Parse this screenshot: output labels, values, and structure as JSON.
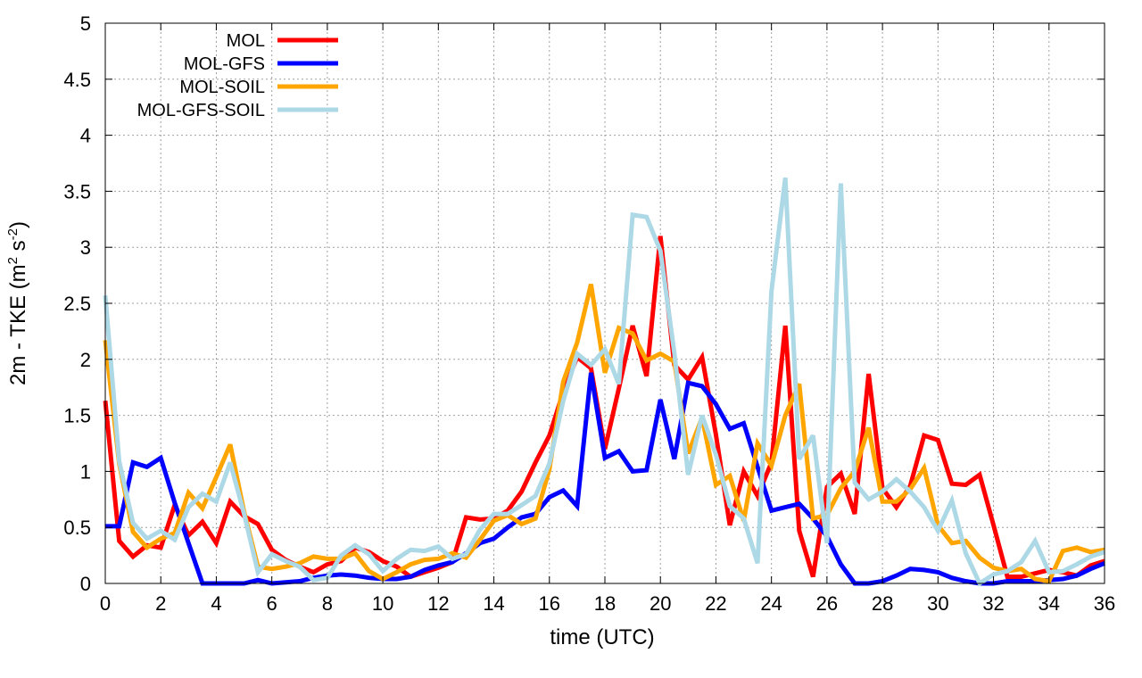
{
  "chart_data": {
    "type": "line",
    "xlabel": "time (UTC)",
    "ylabel": "2m - TKE (m² s⁻²)",
    "ylabel_parts": {
      "prefix": "2m - TKE (m",
      "sup1": "2",
      "middle": " s",
      "sup2": "-2",
      "suffix": ")"
    },
    "xlim": [
      0,
      36
    ],
    "ylim": [
      0,
      5
    ],
    "xticks": [
      0,
      2,
      4,
      6,
      8,
      10,
      12,
      14,
      16,
      18,
      20,
      22,
      24,
      26,
      28,
      30,
      32,
      34,
      36
    ],
    "yticks": [
      0,
      0.5,
      1,
      1.5,
      2,
      2.5,
      3,
      3.5,
      4,
      4.5,
      5
    ],
    "ytick_labels": [
      "0",
      "0.5",
      "1",
      "1.5",
      "2",
      "2.5",
      "3",
      "3.5",
      "4",
      "4.5",
      "5"
    ],
    "grid": true,
    "legend_position": "top-left",
    "series": [
      {
        "name": "MOL",
        "color": "#ff0000",
        "x": [
          0,
          0.5,
          1,
          1.5,
          2,
          2.5,
          3,
          3.5,
          4,
          4.5,
          5,
          5.5,
          6,
          6.5,
          7,
          7.5,
          8,
          8.5,
          9,
          9.5,
          10,
          10.5,
          11,
          11.5,
          12,
          12.5,
          13,
          13.5,
          14,
          14.5,
          15,
          15.5,
          16,
          16.5,
          17,
          17.5,
          18,
          18.5,
          19,
          19.5,
          20,
          20.5,
          21,
          21.5,
          22,
          22.5,
          23,
          23.5,
          24,
          24.5,
          25,
          25.5,
          26,
          26.5,
          27,
          27.5,
          28,
          28.5,
          29,
          29.5,
          30,
          30.5,
          31,
          31.5,
          32,
          32.5,
          33,
          33.5,
          34,
          34.5,
          35,
          35.5,
          36
        ],
        "y": [
          1.63,
          0.38,
          0.24,
          0.34,
          0.32,
          0.7,
          0.43,
          0.55,
          0.36,
          0.73,
          0.6,
          0.53,
          0.3,
          0.21,
          0.15,
          0.1,
          0.17,
          0.2,
          0.32,
          0.28,
          0.2,
          0.15,
          0.06,
          0.1,
          0.14,
          0.19,
          0.59,
          0.57,
          0.58,
          0.65,
          0.82,
          1.08,
          1.32,
          1.71,
          2.02,
          1.92,
          1.2,
          1.74,
          2.3,
          1.85,
          3.1,
          1.95,
          1.82,
          2.02,
          1.33,
          0.52,
          1.0,
          0.78,
          1.08,
          2.3,
          0.47,
          0.06,
          0.86,
          0.98,
          0.62,
          1.87,
          0.85,
          0.68,
          0.87,
          1.32,
          1.28,
          0.89,
          0.88,
          0.97,
          0.52,
          0.06,
          0.06,
          0.09,
          0.12,
          0.1,
          0.07,
          0.16,
          0.2
        ]
      },
      {
        "name": "MOL-GFS",
        "color": "#0000ff",
        "x": [
          0,
          0.5,
          1,
          1.5,
          2,
          2.5,
          3,
          3.5,
          4,
          4.5,
          5,
          5.5,
          6,
          6.5,
          7,
          7.5,
          8,
          8.5,
          9,
          9.5,
          10,
          10.5,
          11,
          11.5,
          12,
          12.5,
          13,
          13.5,
          14,
          14.5,
          15,
          15.5,
          16,
          16.5,
          17,
          17.5,
          18,
          18.5,
          19,
          19.5,
          20,
          20.5,
          21,
          21.5,
          22,
          22.5,
          23,
          23.5,
          24,
          24.5,
          25,
          25.5,
          26,
          26.5,
          27,
          27.5,
          28,
          28.5,
          29,
          29.5,
          30,
          30.5,
          31,
          31.5,
          32,
          32.5,
          33,
          33.5,
          34,
          34.5,
          35,
          35.5,
          36
        ],
        "y": [
          0.51,
          0.51,
          1.08,
          1.04,
          1.12,
          0.72,
          0.36,
          0.0,
          0.0,
          0.0,
          0.0,
          0.03,
          0.0,
          0.01,
          0.02,
          0.05,
          0.07,
          0.08,
          0.07,
          0.05,
          0.04,
          0.04,
          0.06,
          0.12,
          0.16,
          0.19,
          0.27,
          0.36,
          0.4,
          0.5,
          0.59,
          0.62,
          0.77,
          0.83,
          0.69,
          1.88,
          1.12,
          1.18,
          1.0,
          1.01,
          1.64,
          1.11,
          1.79,
          1.76,
          1.6,
          1.38,
          1.43,
          1.04,
          0.65,
          0.68,
          0.71,
          0.58,
          0.42,
          0.17,
          0.0,
          0.0,
          0.02,
          0.07,
          0.13,
          0.12,
          0.1,
          0.05,
          0.02,
          0.0,
          0.0,
          0.02,
          0.02,
          0.02,
          0.03,
          0.04,
          0.07,
          0.13,
          0.18
        ]
      },
      {
        "name": "MOL-SOIL",
        "color": "#ffa500",
        "x": [
          0,
          0.5,
          1,
          1.5,
          2,
          2.5,
          3,
          3.5,
          4,
          4.5,
          5,
          5.5,
          6,
          6.5,
          7,
          7.5,
          8,
          8.5,
          9,
          9.5,
          10,
          10.5,
          11,
          11.5,
          12,
          12.5,
          13,
          13.5,
          14,
          14.5,
          15,
          15.5,
          16,
          16.5,
          17,
          17.5,
          18,
          18.5,
          19,
          19.5,
          20,
          20.5,
          21,
          21.5,
          22,
          22.5,
          23,
          23.5,
          24,
          24.5,
          25,
          25.5,
          26,
          26.5,
          27,
          27.5,
          28,
          28.5,
          29,
          29.5,
          30,
          30.5,
          31,
          31.5,
          32,
          32.5,
          33,
          33.5,
          34,
          34.5,
          35,
          35.5,
          36
        ],
        "y": [
          2.17,
          1.07,
          0.46,
          0.32,
          0.4,
          0.45,
          0.81,
          0.67,
          0.95,
          1.24,
          0.64,
          0.15,
          0.13,
          0.15,
          0.18,
          0.24,
          0.22,
          0.22,
          0.27,
          0.11,
          0.04,
          0.1,
          0.17,
          0.21,
          0.22,
          0.27,
          0.23,
          0.39,
          0.56,
          0.61,
          0.53,
          0.58,
          1.02,
          1.8,
          2.15,
          2.67,
          1.88,
          2.28,
          2.23,
          1.99,
          2.05,
          1.98,
          1.16,
          1.48,
          0.88,
          0.96,
          0.56,
          1.25,
          1.05,
          1.5,
          1.78,
          0.58,
          0.61,
          0.85,
          1.0,
          1.39,
          0.73,
          0.73,
          0.84,
          1.03,
          0.52,
          0.36,
          0.38,
          0.23,
          0.14,
          0.11,
          0.13,
          0.04,
          0.02,
          0.29,
          0.32,
          0.28,
          0.3
        ]
      },
      {
        "name": "MOL-GFS-SOIL",
        "color": "#add8e6",
        "x": [
          0,
          0.5,
          1,
          1.5,
          2,
          2.5,
          3,
          3.5,
          4,
          4.5,
          5,
          5.5,
          6,
          6.5,
          7,
          7.5,
          8,
          8.5,
          9,
          9.5,
          10,
          10.5,
          11,
          11.5,
          12,
          12.5,
          13,
          13.5,
          14,
          14.5,
          15,
          15.5,
          16,
          16.5,
          17,
          17.5,
          18,
          18.5,
          19,
          19.5,
          20,
          20.5,
          21,
          21.5,
          22,
          22.5,
          23,
          23.5,
          24,
          24.5,
          25,
          25.5,
          26,
          26.5,
          27,
          27.5,
          28,
          28.5,
          29,
          29.5,
          30,
          30.5,
          31,
          31.5,
          32,
          32.5,
          33,
          33.5,
          34,
          34.5,
          35,
          35.5,
          36
        ],
        "y": [
          2.57,
          1.09,
          0.54,
          0.4,
          0.47,
          0.39,
          0.68,
          0.8,
          0.73,
          1.08,
          0.62,
          0.1,
          0.26,
          0.2,
          0.15,
          0.03,
          0.05,
          0.25,
          0.34,
          0.26,
          0.11,
          0.22,
          0.3,
          0.29,
          0.33,
          0.22,
          0.26,
          0.48,
          0.62,
          0.62,
          0.7,
          0.78,
          1.07,
          1.63,
          2.05,
          1.95,
          2.09,
          1.78,
          3.29,
          3.27,
          2.97,
          2.06,
          0.97,
          1.5,
          1.15,
          0.69,
          0.58,
          0.18,
          2.61,
          3.62,
          1.11,
          1.32,
          0.36,
          3.57,
          0.9,
          0.75,
          0.82,
          0.93,
          0.82,
          0.68,
          0.47,
          0.74,
          0.27,
          0.0,
          0.08,
          0.11,
          0.19,
          0.38,
          0.1,
          0.11,
          0.17,
          0.24,
          0.28
        ]
      }
    ]
  }
}
